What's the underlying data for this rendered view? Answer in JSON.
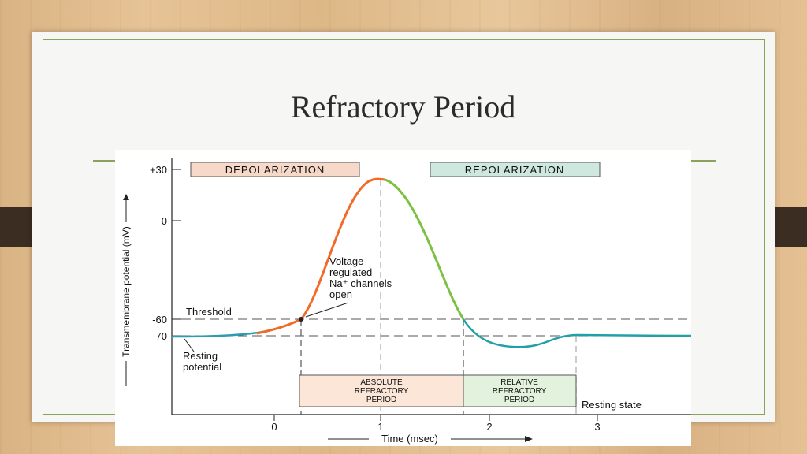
{
  "slide": {
    "title": "Refractory Period"
  },
  "diagram": {
    "header_depolarization": "DEPOLARIZATION",
    "header_repolarization": "REPOLARIZATION",
    "y_axis_label": "Transmembrane potential (mV)",
    "y_ticks": [
      "+30",
      "0",
      "-60",
      "-70"
    ],
    "x_axis_label": "Time (msec)",
    "x_ticks": [
      "0",
      "1",
      "2",
      "3"
    ],
    "threshold_label": "Threshold",
    "resting_potential_line1": "Resting",
    "resting_potential_line2": "potential",
    "na_label_line1": "Voltage-",
    "na_label_line2": "regulated",
    "na_label_line3": "Na⁺ channels",
    "na_label_line4": "open",
    "absolute_line1": "ABSOLUTE",
    "absolute_line2": "REFRACTORY",
    "absolute_line3": "PERIOD",
    "relative_line1": "RELATIVE",
    "relative_line2": "REFRACTORY",
    "relative_line3": "PERIOD",
    "resting_state_label": "Resting state"
  },
  "colors": {
    "resting_curve": "#2a9db3",
    "depolarization_curve": "#f26a25",
    "repolarization_curve": "#7cc242",
    "hyperpolarization_curve": "#22a0a8",
    "depol_box_fill": "#f6d9c8",
    "repol_box_fill": "#cfe8df",
    "absolute_box_fill": "#fbe6d8",
    "relative_box_fill": "#e3f2dd",
    "frame_green": "#8aa35c"
  }
}
